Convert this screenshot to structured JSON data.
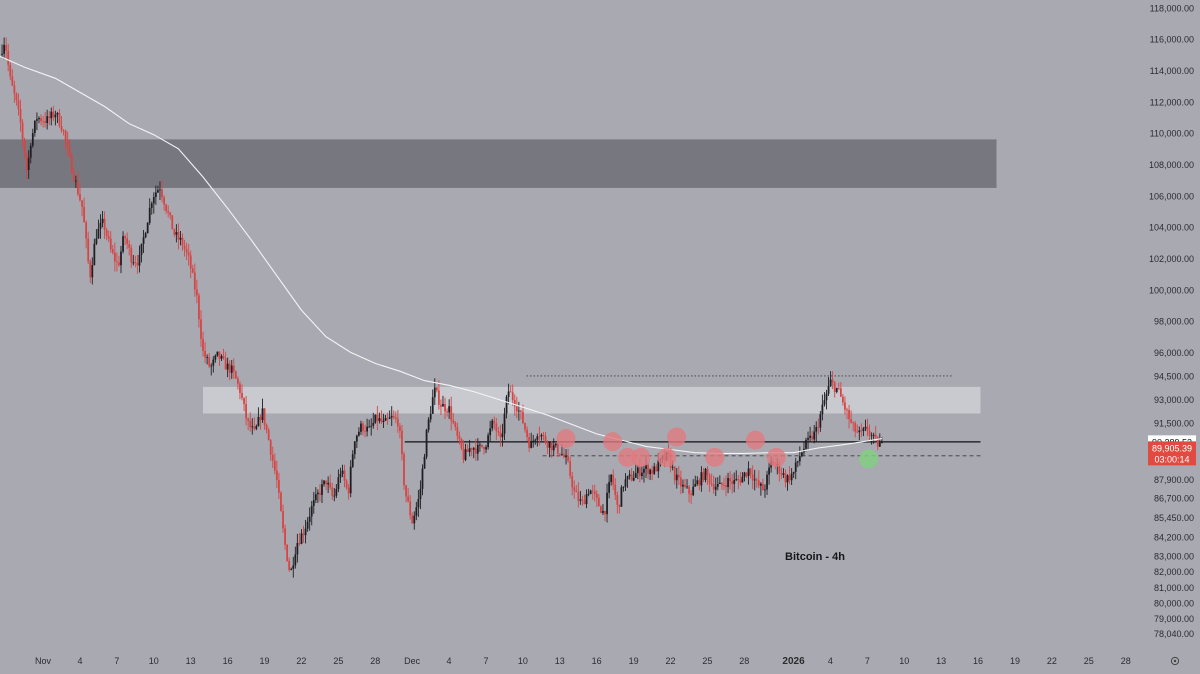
{
  "colors": {
    "background": "#a9aab1",
    "up": "#1f1f23",
    "down": "#d64545",
    "ma": "#f4f4f6",
    "zone_dark": "#6f7077",
    "zone_light": "#d3d4d9",
    "circle_red": "#e07b80",
    "circle_green": "#7fd07e",
    "axis_text": "#2b2b30",
    "badge_red": "#e04a40"
  },
  "chart_data": {
    "type": "candlestick",
    "title": "Bitcoin - 4h",
    "ylim": [
      77000,
      118500
    ],
    "x_range_days": [
      -3.5,
      89
    ],
    "y_ticks": [
      118000,
      116000,
      114000,
      112000,
      110000,
      108000,
      106000,
      104000,
      102000,
      100000,
      98000,
      96000,
      94500,
      93000,
      91500,
      87900,
      86700,
      85450,
      84200,
      83000,
      82000,
      81000,
      80000,
      79000,
      78040
    ],
    "y_tick_labels": [
      "118,000.00",
      "116,000.00",
      "114,000.00",
      "112,000.00",
      "110,000.00",
      "108,000.00",
      "106,000.00",
      "104,000.00",
      "102,000.00",
      "100,000.00",
      "98,000.00",
      "96,000.00",
      "94,500.00",
      "93,000.00",
      "91,500.00",
      "87,900.00",
      "86,700.00",
      "85,450.00",
      "84,200.00",
      "83,000.00",
      "82,000.00",
      "81,000.00",
      "80,000.00",
      "79,000.00",
      "78,040.00"
    ],
    "x_ticks": [
      {
        "day": 0,
        "label": "Nov"
      },
      {
        "day": 3,
        "label": "4"
      },
      {
        "day": 6,
        "label": "7"
      },
      {
        "day": 9,
        "label": "10"
      },
      {
        "day": 12,
        "label": "13"
      },
      {
        "day": 15,
        "label": "16"
      },
      {
        "day": 18,
        "label": "19"
      },
      {
        "day": 21,
        "label": "22"
      },
      {
        "day": 24,
        "label": "25"
      },
      {
        "day": 27,
        "label": "28"
      },
      {
        "day": 30,
        "label": "Dec"
      },
      {
        "day": 33,
        "label": "4"
      },
      {
        "day": 36,
        "label": "7"
      },
      {
        "day": 39,
        "label": "10"
      },
      {
        "day": 42,
        "label": "13"
      },
      {
        "day": 45,
        "label": "16"
      },
      {
        "day": 48,
        "label": "19"
      },
      {
        "day": 51,
        "label": "22"
      },
      {
        "day": 54,
        "label": "25"
      },
      {
        "day": 57,
        "label": "28"
      },
      {
        "day": 61,
        "label": "2026",
        "bold": true
      },
      {
        "day": 64,
        "label": "4"
      },
      {
        "day": 67,
        "label": "7"
      },
      {
        "day": 70,
        "label": "10"
      },
      {
        "day": 73,
        "label": "13"
      },
      {
        "day": 76,
        "label": "16"
      },
      {
        "day": 79,
        "label": "19"
      },
      {
        "day": 82,
        "label": "22"
      },
      {
        "day": 85,
        "label": "25"
      },
      {
        "day": 88,
        "label": "28"
      }
    ],
    "price_path": [
      [
        -3.5,
        115000
      ],
      [
        -3.1,
        116000
      ],
      [
        -2.7,
        113500
      ],
      [
        -2.2,
        112000
      ],
      [
        -1.8,
        110500
      ],
      [
        -1.3,
        107500
      ],
      [
        -1.0,
        109500
      ],
      [
        -0.5,
        111000
      ],
      [
        0.3,
        110800
      ],
      [
        1.0,
        111300
      ],
      [
        1.6,
        110300
      ],
      [
        2.1,
        108500
      ],
      [
        2.6,
        107000
      ],
      [
        3.2,
        105200
      ],
      [
        3.8,
        100800
      ],
      [
        4.3,
        103500
      ],
      [
        4.9,
        104300
      ],
      [
        5.5,
        102500
      ],
      [
        6.1,
        101500
      ],
      [
        6.6,
        103500
      ],
      [
        7.2,
        102000
      ],
      [
        7.8,
        101800
      ],
      [
        8.3,
        103800
      ],
      [
        8.9,
        106000
      ],
      [
        9.5,
        106600
      ],
      [
        10.1,
        105000
      ],
      [
        10.7,
        103500
      ],
      [
        11.3,
        103000
      ],
      [
        11.9,
        101800
      ],
      [
        12.5,
        99500
      ],
      [
        13.0,
        96000
      ],
      [
        13.6,
        95000
      ],
      [
        14.2,
        95800
      ],
      [
        14.8,
        95200
      ],
      [
        15.4,
        94800
      ],
      [
        16.0,
        93600
      ],
      [
        16.6,
        91500
      ],
      [
        17.2,
        90800
      ],
      [
        17.8,
        92300
      ],
      [
        18.4,
        90200
      ],
      [
        19.0,
        87800
      ],
      [
        19.6,
        84000
      ],
      [
        20.1,
        81800
      ],
      [
        20.6,
        83800
      ],
      [
        21.2,
        84600
      ],
      [
        21.8,
        86000
      ],
      [
        22.4,
        87000
      ],
      [
        23.0,
        87800
      ],
      [
        23.6,
        86600
      ],
      [
        24.2,
        88500
      ],
      [
        24.8,
        87000
      ],
      [
        25.3,
        90500
      ],
      [
        25.9,
        91300
      ],
      [
        26.5,
        91000
      ],
      [
        27.1,
        91800
      ],
      [
        27.7,
        91400
      ],
      [
        28.3,
        91800
      ],
      [
        28.9,
        91600
      ],
      [
        29.4,
        87200
      ],
      [
        30.0,
        85200
      ],
      [
        30.6,
        86800
      ],
      [
        31.2,
        91000
      ],
      [
        31.8,
        93600
      ],
      [
        32.4,
        92600
      ],
      [
        33.0,
        92400
      ],
      [
        33.6,
        90700
      ],
      [
        34.2,
        89300
      ],
      [
        34.8,
        90000
      ],
      [
        35.4,
        89800
      ],
      [
        36.0,
        90200
      ],
      [
        36.6,
        91600
      ],
      [
        37.2,
        90200
      ],
      [
        37.8,
        93600
      ],
      [
        38.4,
        92800
      ],
      [
        39.0,
        91600
      ],
      [
        39.6,
        90000
      ],
      [
        40.2,
        91000
      ],
      [
        40.8,
        90400
      ],
      [
        41.4,
        90000
      ],
      [
        42.0,
        89700
      ],
      [
        42.6,
        89000
      ],
      [
        43.2,
        87000
      ],
      [
        43.8,
        86300
      ],
      [
        44.4,
        87300
      ],
      [
        45.0,
        86500
      ],
      [
        45.6,
        85700
      ],
      [
        46.2,
        88200
      ],
      [
        46.7,
        86000
      ],
      [
        47.2,
        87700
      ],
      [
        47.8,
        88000
      ],
      [
        48.4,
        88400
      ],
      [
        49.0,
        88600
      ],
      [
        49.6,
        88400
      ],
      [
        50.2,
        89000
      ],
      [
        50.8,
        89400
      ],
      [
        51.4,
        88000
      ],
      [
        52.0,
        87400
      ],
      [
        52.6,
        87000
      ],
      [
        53.2,
        87700
      ],
      [
        53.8,
        88300
      ],
      [
        54.4,
        87600
      ],
      [
        55.0,
        87400
      ],
      [
        55.6,
        87800
      ],
      [
        56.2,
        87700
      ],
      [
        56.8,
        88000
      ],
      [
        57.4,
        88600
      ],
      [
        58.0,
        87600
      ],
      [
        58.6,
        87200
      ],
      [
        59.2,
        89000
      ],
      [
        59.8,
        88600
      ],
      [
        60.4,
        87900
      ],
      [
        61.0,
        88300
      ],
      [
        61.6,
        89600
      ],
      [
        62.2,
        90300
      ],
      [
        62.8,
        90900
      ],
      [
        63.4,
        92600
      ],
      [
        64.0,
        94100
      ],
      [
        64.6,
        93600
      ],
      [
        65.2,
        92400
      ],
      [
        65.8,
        91200
      ],
      [
        66.4,
        90700
      ],
      [
        67.0,
        91100
      ],
      [
        67.6,
        90300
      ],
      [
        68.2,
        90000
      ]
    ],
    "ma_path": [
      [
        -3.5,
        114900
      ],
      [
        -1.5,
        114200
      ],
      [
        1.0,
        113500
      ],
      [
        3.0,
        112600
      ],
      [
        5.0,
        111700
      ],
      [
        7.0,
        110600
      ],
      [
        9.0,
        109900
      ],
      [
        11.0,
        109000
      ],
      [
        13.0,
        107200
      ],
      [
        15.0,
        105200
      ],
      [
        17.0,
        103100
      ],
      [
        19.0,
        100900
      ],
      [
        21.0,
        98700
      ],
      [
        23.0,
        97000
      ],
      [
        25.0,
        96000
      ],
      [
        27.0,
        95300
      ],
      [
        29.0,
        94800
      ],
      [
        31.0,
        94200
      ],
      [
        33.0,
        93900
      ],
      [
        35.0,
        93500
      ],
      [
        37.0,
        93000
      ],
      [
        39.0,
        92500
      ],
      [
        41.0,
        92000
      ],
      [
        43.0,
        91400
      ],
      [
        45.0,
        90800
      ],
      [
        47.0,
        90400
      ],
      [
        49.0,
        90000
      ],
      [
        51.0,
        89800
      ],
      [
        53.0,
        89600
      ],
      [
        55.0,
        89550
      ],
      [
        57.0,
        89550
      ],
      [
        59.0,
        89600
      ],
      [
        61.0,
        89600
      ],
      [
        63.0,
        89900
      ],
      [
        65.0,
        90100
      ],
      [
        67.0,
        90350
      ],
      [
        68.2,
        90500
      ]
    ],
    "zones": [
      {
        "from_day": -3.5,
        "to_day": 77.5,
        "y_low": 106500,
        "y_high": 109600,
        "style": "dark"
      },
      {
        "from_day": 13.0,
        "to_day": 76.2,
        "y_low": 92100,
        "y_high": 93800,
        "style": "light"
      }
    ],
    "levels": [
      {
        "from_day": 39.3,
        "to_day": 74.0,
        "y": 94500,
        "style": "dotted"
      },
      {
        "from_day": 29.4,
        "to_day": 76.2,
        "y": 90289,
        "style": "solid"
      },
      {
        "from_day": 40.6,
        "to_day": 76.2,
        "y": 89400,
        "style": "dashed"
      }
    ],
    "markers": [
      {
        "day": 42.5,
        "y": 90500,
        "color": "red"
      },
      {
        "day": 46.3,
        "y": 90300,
        "color": "red"
      },
      {
        "day": 47.5,
        "y": 89300,
        "color": "red"
      },
      {
        "day": 48.6,
        "y": 89300,
        "color": "red"
      },
      {
        "day": 50.7,
        "y": 89300,
        "color": "red"
      },
      {
        "day": 51.5,
        "y": 90600,
        "color": "red"
      },
      {
        "day": 54.6,
        "y": 89300,
        "color": "red"
      },
      {
        "day": 57.9,
        "y": 90400,
        "color": "red"
      },
      {
        "day": 59.6,
        "y": 89300,
        "color": "red"
      },
      {
        "day": 67.1,
        "y": 89200,
        "color": "green"
      }
    ],
    "price_labels": [
      {
        "label": "90,289.53",
        "y": 90289.53,
        "style": "white"
      },
      {
        "label": "89,905.39",
        "y": 89905.39,
        "style": "red"
      },
      {
        "label": "03:00:14",
        "style": "red"
      }
    ]
  }
}
